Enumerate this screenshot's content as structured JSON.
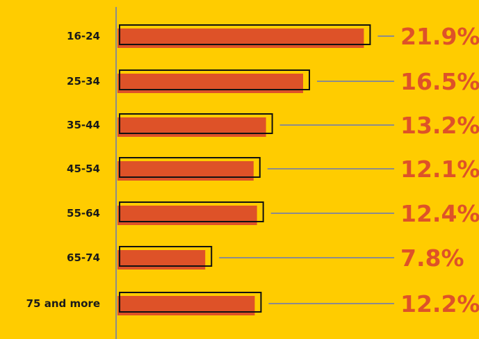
{
  "chart_data": {
    "type": "bar",
    "orientation": "horizontal",
    "categories": [
      "16-24",
      "25-34",
      "35-44",
      "45-54",
      "55-64",
      "65-74",
      "75 and more"
    ],
    "values": [
      21.9,
      16.5,
      13.2,
      12.1,
      12.4,
      7.8,
      12.2
    ],
    "value_labels": [
      "21.9%",
      "16.5%",
      "13.2%",
      "12.1%",
      "12.4%",
      "7.8%",
      "12.2%"
    ],
    "xlim": [
      0,
      22
    ],
    "grid": false,
    "legend": "none"
  },
  "colors": {
    "background": "#FFCC00",
    "bar_fill": "#DE5228",
    "bar_outline": "#111111",
    "value_text": "#DE5228",
    "leader_line": "#8C8C8C",
    "axis_line": "#8C8C8C"
  }
}
